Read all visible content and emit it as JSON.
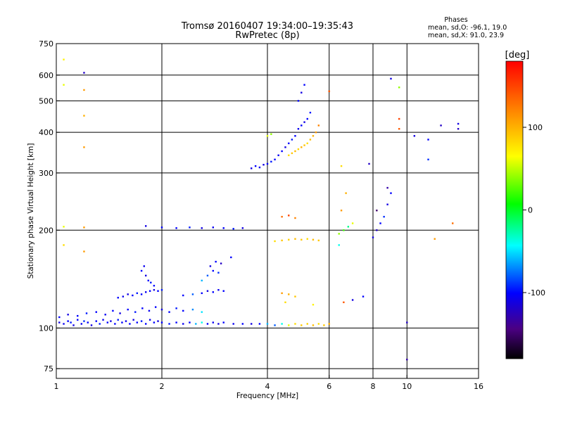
{
  "chart_data": {
    "type": "scatter",
    "title": "Tromsø 20160407 19:34:00–19:35:43",
    "subtitle": "RwPretec (8p)",
    "xlabel": "Frequency [MHz]",
    "ylabel": "Stationary phase Virtual Height [km]",
    "x_scale": "log2",
    "y_scale": "log",
    "xlim": [
      1,
      16
    ],
    "ylim": [
      70,
      750
    ],
    "x_ticks": [
      1,
      2,
      4,
      6,
      8,
      10,
      16
    ],
    "x_tick_labels": [
      "1",
      "2",
      "4",
      "6",
      "8",
      "10",
      "16"
    ],
    "y_ticks": [
      75,
      100,
      200,
      300,
      400,
      500,
      600,
      750
    ],
    "y_tick_labels": [
      "75",
      "100",
      "200",
      "300",
      "400",
      "500",
      "600",
      "750"
    ],
    "grid": true,
    "phase_box": {
      "title": "Phases",
      "line_o": "mean, sd,O: -96.1, 19.0",
      "line_x": "mean, sd,X:  91.0, 23.9"
    },
    "colorbar": {
      "label": "[deg]",
      "range": [
        -180,
        180
      ],
      "ticks": [
        100,
        0,
        -100
      ],
      "tick_labels": [
        "100",
        "0",
        "-100"
      ]
    },
    "points": [
      [
        1.02,
        104,
        -110
      ],
      [
        1.05,
        103,
        -105
      ],
      [
        1.08,
        105,
        -100
      ],
      [
        1.1,
        104,
        -95
      ],
      [
        1.12,
        102,
        -110
      ],
      [
        1.15,
        106,
        -100
      ],
      [
        1.18,
        103,
        -105
      ],
      [
        1.2,
        105,
        -90
      ],
      [
        1.23,
        104,
        -100
      ],
      [
        1.26,
        102,
        -110
      ],
      [
        1.3,
        105,
        -100
      ],
      [
        1.33,
        103,
        -95
      ],
      [
        1.36,
        106,
        -105
      ],
      [
        1.4,
        104,
        -100
      ],
      [
        1.43,
        105,
        -110
      ],
      [
        1.47,
        103,
        -100
      ],
      [
        1.5,
        106,
        -95
      ],
      [
        1.54,
        104,
        -100
      ],
      [
        1.58,
        105,
        -105
      ],
      [
        1.62,
        103,
        -100
      ],
      [
        1.66,
        106,
        -110
      ],
      [
        1.7,
        104,
        -100
      ],
      [
        1.75,
        105,
        -95
      ],
      [
        1.8,
        103,
        -100
      ],
      [
        1.85,
        106,
        -105
      ],
      [
        1.9,
        104,
        -100
      ],
      [
        1.95,
        105,
        -110
      ],
      [
        2.0,
        104,
        -100
      ],
      [
        2.1,
        103,
        -95
      ],
      [
        2.2,
        104,
        -100
      ],
      [
        2.3,
        103,
        -105
      ],
      [
        2.4,
        104,
        -100
      ],
      [
        2.5,
        103,
        -60
      ],
      [
        2.6,
        104,
        -40
      ],
      [
        2.7,
        103,
        -100
      ],
      [
        2.8,
        104,
        -105
      ],
      [
        2.9,
        103,
        -110
      ],
      [
        3.0,
        104,
        -100
      ],
      [
        3.2,
        103,
        -105
      ],
      [
        3.4,
        103,
        -100
      ],
      [
        3.6,
        103,
        -110
      ],
      [
        3.8,
        103,
        -100
      ],
      [
        4.0,
        103,
        -60
      ],
      [
        4.2,
        102,
        -80
      ],
      [
        4.4,
        103,
        -40
      ],
      [
        4.6,
        102,
        60
      ],
      [
        4.8,
        103,
        80
      ],
      [
        5.0,
        102,
        90
      ],
      [
        5.2,
        103,
        85
      ],
      [
        5.4,
        102,
        95
      ],
      [
        5.6,
        103,
        80
      ],
      [
        5.8,
        102,
        90
      ],
      [
        6.0,
        103,
        100
      ],
      [
        1.02,
        108,
        -100
      ],
      [
        1.08,
        110,
        -110
      ],
      [
        1.15,
        109,
        -100
      ],
      [
        1.22,
        111,
        -95
      ],
      [
        1.3,
        112,
        -100
      ],
      [
        1.38,
        110,
        -105
      ],
      [
        1.45,
        113,
        -100
      ],
      [
        1.52,
        111,
        -110
      ],
      [
        1.6,
        114,
        -100
      ],
      [
        1.68,
        112,
        -95
      ],
      [
        1.76,
        115,
        -100
      ],
      [
        1.84,
        113,
        -105
      ],
      [
        1.92,
        116,
        -100
      ],
      [
        2.0,
        114,
        -110
      ],
      [
        2.1,
        112,
        -100
      ],
      [
        2.2,
        115,
        -95
      ],
      [
        2.3,
        113,
        -100
      ],
      [
        2.45,
        114,
        -70
      ],
      [
        2.6,
        112,
        -50
      ],
      [
        1.5,
        124,
        -100
      ],
      [
        1.55,
        125,
        -105
      ],
      [
        1.6,
        127,
        -110
      ],
      [
        1.65,
        126,
        -100
      ],
      [
        1.7,
        128,
        -95
      ],
      [
        1.75,
        127,
        -100
      ],
      [
        1.8,
        129,
        -105
      ],
      [
        1.85,
        130,
        -100
      ],
      [
        1.9,
        131,
        -110
      ],
      [
        1.95,
        130,
        -100
      ],
      [
        2.0,
        131,
        -95
      ],
      [
        1.75,
        150,
        -100
      ],
      [
        1.78,
        155,
        -105
      ],
      [
        1.8,
        145,
        -110
      ],
      [
        1.83,
        140,
        -100
      ],
      [
        1.86,
        138,
        -95
      ],
      [
        1.9,
        135,
        -100
      ],
      [
        2.3,
        126,
        -100
      ],
      [
        2.45,
        127,
        -80
      ],
      [
        2.6,
        128,
        -100
      ],
      [
        2.7,
        130,
        -110
      ],
      [
        2.8,
        129,
        -100
      ],
      [
        2.9,
        131,
        -105
      ],
      [
        3.0,
        130,
        -100
      ],
      [
        2.6,
        140,
        -60
      ],
      [
        2.7,
        145,
        -80
      ],
      [
        2.8,
        150,
        -100
      ],
      [
        2.9,
        148,
        -90
      ],
      [
        2.75,
        155,
        -110
      ],
      [
        2.85,
        160,
        -100
      ],
      [
        2.95,
        158,
        -120
      ],
      [
        3.15,
        165,
        -100
      ],
      [
        1.05,
        205,
        60
      ],
      [
        1.2,
        204,
        110
      ],
      [
        1.8,
        206,
        -110
      ],
      [
        2.0,
        204,
        -100
      ],
      [
        2.2,
        203,
        -100
      ],
      [
        2.4,
        204,
        -95
      ],
      [
        2.6,
        203,
        -110
      ],
      [
        2.8,
        204,
        -105
      ],
      [
        3.0,
        203,
        -100
      ],
      [
        3.2,
        202,
        -95
      ],
      [
        3.4,
        203,
        -110
      ],
      [
        1.05,
        670,
        70
      ],
      [
        1.05,
        560,
        60
      ],
      [
        1.2,
        610,
        -120
      ],
      [
        1.2,
        540,
        110
      ],
      [
        1.2,
        450,
        100
      ],
      [
        1.2,
        360,
        110
      ],
      [
        1.05,
        180,
        80
      ],
      [
        1.2,
        172,
        110
      ],
      [
        3.6,
        310,
        -110
      ],
      [
        3.7,
        315,
        -100
      ],
      [
        3.8,
        312,
        -105
      ],
      [
        3.9,
        318,
        -110
      ],
      [
        4.0,
        320,
        -100
      ],
      [
        4.1,
        325,
        -95
      ],
      [
        4.2,
        330,
        -100
      ],
      [
        4.3,
        340,
        -105
      ],
      [
        4.4,
        350,
        -100
      ],
      [
        4.5,
        360,
        -110
      ],
      [
        4.6,
        370,
        -100
      ],
      [
        4.7,
        380,
        -95
      ],
      [
        4.8,
        390,
        -100
      ],
      [
        4.9,
        410,
        -105
      ],
      [
        5.0,
        420,
        -100
      ],
      [
        5.1,
        430,
        -110
      ],
      [
        5.2,
        440,
        -100
      ],
      [
        5.3,
        460,
        -95
      ],
      [
        4.9,
        500,
        -100
      ],
      [
        5.0,
        530,
        -110
      ],
      [
        5.1,
        560,
        -100
      ],
      [
        4.6,
        340,
        80
      ],
      [
        4.7,
        345,
        90
      ],
      [
        4.8,
        350,
        95
      ],
      [
        4.9,
        355,
        85
      ],
      [
        5.0,
        360,
        100
      ],
      [
        5.1,
        365,
        90
      ],
      [
        5.2,
        370,
        80
      ],
      [
        5.3,
        380,
        95
      ],
      [
        5.4,
        390,
        100
      ],
      [
        5.5,
        400,
        110
      ],
      [
        5.6,
        420,
        120
      ],
      [
        4.0,
        390,
        60
      ],
      [
        4.1,
        395,
        40
      ],
      [
        4.2,
        185,
        80
      ],
      [
        4.4,
        186,
        90
      ],
      [
        4.6,
        187,
        85
      ],
      [
        4.8,
        188,
        95
      ],
      [
        5.0,
        187,
        90
      ],
      [
        5.2,
        188,
        80
      ],
      [
        5.4,
        187,
        95
      ],
      [
        5.6,
        186,
        90
      ],
      [
        4.4,
        220,
        130
      ],
      [
        4.6,
        222,
        150
      ],
      [
        4.8,
        218,
        120
      ],
      [
        4.4,
        128,
        110
      ],
      [
        4.6,
        127,
        100
      ],
      [
        4.8,
        125,
        90
      ],
      [
        4.5,
        120,
        80
      ],
      [
        5.4,
        118,
        70
      ],
      [
        6.4,
        195,
        40
      ],
      [
        6.6,
        200,
        20
      ],
      [
        6.8,
        205,
        -20
      ],
      [
        7.0,
        210,
        60
      ],
      [
        6.5,
        230,
        110
      ],
      [
        6.7,
        260,
        100
      ],
      [
        6.4,
        180,
        -40
      ],
      [
        6.6,
        120,
        140
      ],
      [
        7.0,
        122,
        -110
      ],
      [
        7.5,
        125,
        -100
      ],
      [
        8.0,
        190,
        -110
      ],
      [
        8.2,
        200,
        -120
      ],
      [
        8.4,
        210,
        -100
      ],
      [
        8.6,
        220,
        -90
      ],
      [
        8.8,
        240,
        -110
      ],
      [
        9.0,
        260,
        -100
      ],
      [
        8.2,
        230,
        -150
      ],
      [
        7.8,
        320,
        -120
      ],
      [
        8.8,
        270,
        -130
      ],
      [
        9.0,
        585,
        -110
      ],
      [
        9.5,
        550,
        40
      ],
      [
        9.5,
        410,
        140
      ],
      [
        9.5,
        440,
        150
      ],
      [
        10.5,
        390,
        -110
      ],
      [
        11.5,
        380,
        -100
      ],
      [
        12.5,
        420,
        -120
      ],
      [
        14.0,
        425,
        -110
      ],
      [
        14.0,
        410,
        -120
      ],
      [
        11.5,
        330,
        -90
      ],
      [
        13.5,
        210,
        130
      ],
      [
        12.0,
        188,
        110
      ],
      [
        10.0,
        104,
        -120
      ],
      [
        10.0,
        80,
        -130
      ],
      [
        6.0,
        535,
        140
      ],
      [
        6.5,
        315,
        80
      ]
    ]
  }
}
